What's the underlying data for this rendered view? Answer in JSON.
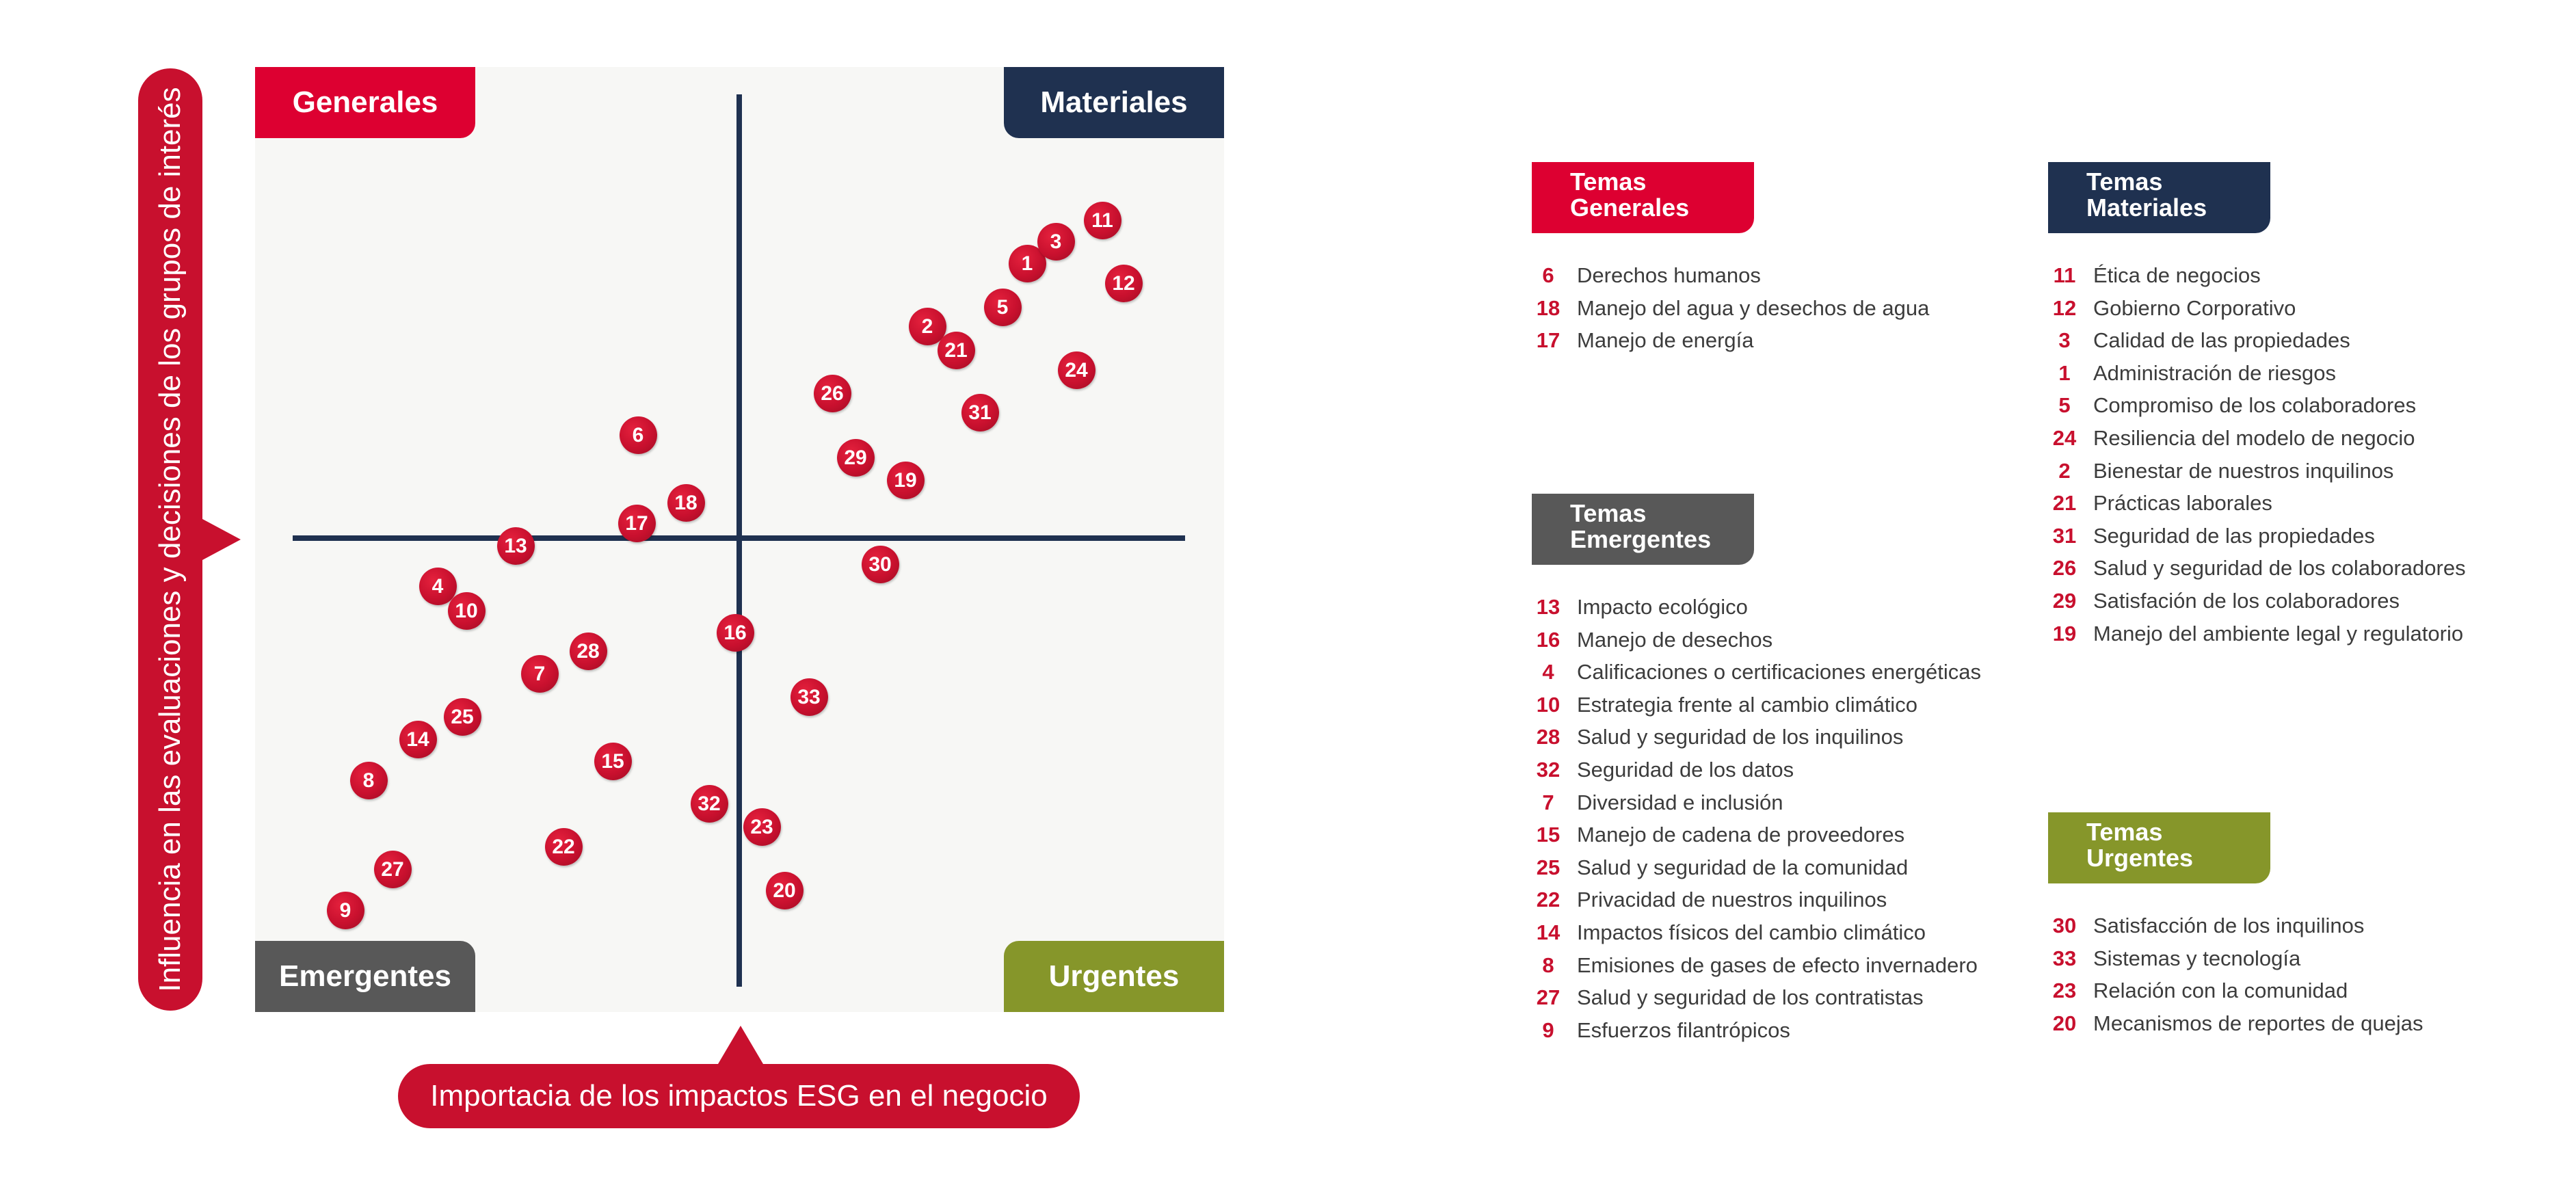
{
  "quadrants": {
    "generales": "Generales",
    "materiales": "Materiales",
    "emergentes": "Emergentes",
    "urgentes": "Urgentes"
  },
  "axes": {
    "y_label": "Influencia en las evaluaciones y decisiones de los grupos de interés",
    "x_label": "Importacia de los impactos ESG en el negocio"
  },
  "colors": {
    "red": "#c8102e",
    "navy": "#1f3150",
    "gray": "#585858",
    "olive": "#86962a"
  },
  "legends": {
    "generales": {
      "title_line1": "Temas",
      "title_line2": "Generales",
      "items": [
        {
          "num": "6",
          "text": "Derechos humanos"
        },
        {
          "num": "18",
          "text": "Manejo del agua y desechos de agua"
        },
        {
          "num": "17",
          "text": "Manejo de energía"
        }
      ]
    },
    "emergentes": {
      "title_line1": "Temas",
      "title_line2": "Emergentes",
      "items": [
        {
          "num": "13",
          "text": "Impacto ecológico"
        },
        {
          "num": "16",
          "text": "Manejo de desechos"
        },
        {
          "num": "4",
          "text": "Calificaciones o certificaciones energéticas"
        },
        {
          "num": "10",
          "text": "Estrategia frente al cambio climático"
        },
        {
          "num": "28",
          "text": "Salud y seguridad de los inquilinos"
        },
        {
          "num": "32",
          "text": "Seguridad de los datos"
        },
        {
          "num": "7",
          "text": "Diversidad e inclusión"
        },
        {
          "num": "15",
          "text": "Manejo de cadena de proveedores"
        },
        {
          "num": "25",
          "text": "Salud y seguridad de la comunidad"
        },
        {
          "num": "22",
          "text": "Privacidad de nuestros inquilinos"
        },
        {
          "num": "14",
          "text": "Impactos físicos del cambio climático"
        },
        {
          "num": "8",
          "text": "Emisiones de gases de efecto invernadero"
        },
        {
          "num": "27",
          "text": "Salud y seguridad de los contratistas"
        },
        {
          "num": "9",
          "text": "Esfuerzos filantrópicos"
        }
      ]
    },
    "materiales": {
      "title_line1": "Temas",
      "title_line2": "Materiales",
      "items": [
        {
          "num": "11",
          "text": "Ética de negocios"
        },
        {
          "num": "12",
          "text": "Gobierno Corporativo"
        },
        {
          "num": "3",
          "text": "Calidad de las propiedades"
        },
        {
          "num": "1",
          "text": "Administración de riesgos"
        },
        {
          "num": "5",
          "text": "Compromiso de los colaboradores"
        },
        {
          "num": "24",
          "text": "Resiliencia del modelo de negocio"
        },
        {
          "num": "2",
          "text": "Bienestar de nuestros inquilinos"
        },
        {
          "num": "21",
          "text": "Prácticas laborales"
        },
        {
          "num": "31",
          "text": "Seguridad de las propiedades"
        },
        {
          "num": "26",
          "text": "Salud y seguridad de los colaboradores"
        },
        {
          "num": "29",
          "text": "Satisfación de los colaboradores"
        },
        {
          "num": "19",
          "text": "Manejo del ambiente legal y regulatorio"
        }
      ]
    },
    "urgentes": {
      "title_line1": "Temas",
      "title_line2": "Urgentes",
      "items": [
        {
          "num": "30",
          "text": "Satisfacción de los inquilinos"
        },
        {
          "num": "33",
          "text": "Sistemas y tecnología"
        },
        {
          "num": "23",
          "text": "Relación con la comunidad"
        },
        {
          "num": "20",
          "text": "Mecanismos de reportes de quejas"
        }
      ]
    }
  },
  "topics": [
    "1",
    "2",
    "3",
    "4",
    "5",
    "6",
    "7",
    "8",
    "9",
    "10",
    "11",
    "12",
    "13",
    "14",
    "15",
    "16",
    "17",
    "18",
    "19",
    "20",
    "21",
    "22",
    "23",
    "24",
    "25",
    "26",
    "27",
    "28",
    "29",
    "30",
    "31",
    "32",
    "33"
  ]
}
